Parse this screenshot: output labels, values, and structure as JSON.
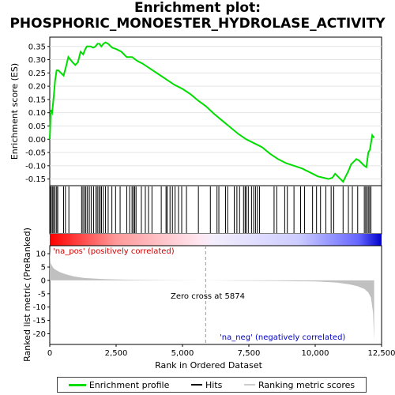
{
  "title_line1": "Enrichment plot:",
  "title_line2": "PHOSPHORIC_MONOESTER_HYDROLASE_ACTIVITY",
  "chart_data": {
    "type": "line",
    "top_panel": {
      "ylabel": "Enrichment score (ES)",
      "yticks": [
        0.35,
        0.3,
        0.25,
        0.2,
        0.15,
        0.1,
        0.05,
        0.0,
        -0.05,
        -0.1,
        -0.15
      ],
      "ytick_labels": [
        "0.35",
        "0.30",
        "0.25",
        "0.20",
        "0.15",
        "0.10",
        "0.05",
        "0.00",
        "-0.05",
        "-0.10",
        "-0.15"
      ],
      "ylim": [
        -0.175,
        0.385
      ],
      "series": {
        "color": "#00dd00",
        "x": [
          0,
          40,
          90,
          150,
          200,
          260,
          320,
          420,
          520,
          600,
          700,
          780,
          860,
          960,
          1060,
          1160,
          1260,
          1340,
          1400,
          1470,
          1540,
          1640,
          1720,
          1800,
          1870,
          1940,
          2020,
          2100,
          2200,
          2350,
          2500,
          2700,
          2900,
          3100,
          3300,
          3500,
          3800,
          4100,
          4400,
          4700,
          5000,
          5300,
          5600,
          5874,
          6200,
          6500,
          6800,
          7100,
          7400,
          7700,
          8000,
          8300,
          8600,
          8900,
          9200,
          9500,
          9800,
          10100,
          10300,
          10500,
          10650,
          10750,
          10850,
          10950,
          11050,
          11150,
          11250,
          11350,
          11450,
          11550,
          11650,
          11750,
          11850,
          11930,
          12000,
          12060,
          12150,
          12220
        ],
        "y": [
          0.0,
          0.11,
          0.1,
          0.16,
          0.22,
          0.26,
          0.26,
          0.25,
          0.24,
          0.27,
          0.31,
          0.3,
          0.29,
          0.28,
          0.29,
          0.33,
          0.32,
          0.34,
          0.35,
          0.35,
          0.35,
          0.345,
          0.35,
          0.36,
          0.36,
          0.35,
          0.36,
          0.365,
          0.36,
          0.345,
          0.34,
          0.33,
          0.31,
          0.31,
          0.295,
          0.285,
          0.265,
          0.245,
          0.225,
          0.205,
          0.19,
          0.17,
          0.145,
          0.125,
          0.095,
          0.07,
          0.045,
          0.02,
          0.0,
          -0.015,
          -0.03,
          -0.055,
          -0.075,
          -0.09,
          -0.1,
          -0.11,
          -0.125,
          -0.14,
          -0.145,
          -0.15,
          -0.145,
          -0.13,
          -0.14,
          -0.15,
          -0.16,
          -0.14,
          -0.12,
          -0.095,
          -0.085,
          -0.075,
          -0.08,
          -0.09,
          -0.1,
          -0.105,
          -0.05,
          -0.04,
          0.015,
          0.005
        ]
      }
    },
    "hits": [
      20,
      60,
      110,
      150,
      200,
      260,
      300,
      520,
      590,
      720,
      1200,
      1250,
      1310,
      1360,
      1420,
      1490,
      1560,
      1650,
      1740,
      1790,
      1850,
      1900,
      1950,
      2020,
      2100,
      2200,
      2340,
      2480,
      2650,
      2900,
      3010,
      3100,
      3150,
      3200,
      3250,
      3450,
      3600,
      3720,
      3850,
      4200,
      4380,
      4420,
      4530,
      4620,
      4720,
      4850,
      4970,
      5150,
      5600,
      6050,
      6300,
      6370,
      6620,
      6700,
      6950,
      7050,
      7150,
      7300,
      7360,
      7400,
      7480,
      7600,
      7680,
      7750,
      7820,
      7900,
      8450,
      8550,
      8850,
      8950,
      9200,
      9450,
      9600,
      9900,
      10050,
      10200,
      10400,
      10600,
      10700,
      11050,
      11250,
      11400,
      11600,
      11850,
      11900,
      11950,
      12000,
      12050,
      12100
    ],
    "bottom_panel": {
      "ylabel": "Ranked list metric (PreRanked)",
      "xlabel": "Rank in Ordered Dataset",
      "yticks": [
        10,
        5,
        0,
        -5,
        -10,
        -15,
        -20
      ],
      "ytick_labels": [
        "10",
        "5",
        "0",
        "-5",
        "-10",
        "-15",
        "-20"
      ],
      "ylim": [
        -24,
        13
      ],
      "metric": {
        "x": [
          0,
          30,
          80,
          150,
          250,
          400,
          600,
          900,
          1300,
          2000,
          3000,
          4500,
          5874,
          7000,
          8500,
          10000,
          10800,
          11300,
          11600,
          11850,
          12000,
          12100,
          12180,
          12220
        ],
        "y": [
          11,
          6.5,
          5.5,
          4.5,
          3.8,
          3.0,
          2.3,
          1.5,
          0.9,
          0.5,
          0.25,
          0.1,
          0.0,
          -0.1,
          -0.2,
          -0.4,
          -0.8,
          -1.5,
          -2.2,
          -3.2,
          -4.5,
          -6.5,
          -12.0,
          -22.5
        ]
      },
      "zero_cross_label": "Zero cross at 5874",
      "zero_cross_value": 5874,
      "pos_label": "'na_pos' (positively correlated)",
      "neg_label": "'na_neg' (negatively correlated)"
    },
    "xticks": [
      0,
      2500,
      5000,
      7500,
      10000,
      12500
    ],
    "xtick_labels": [
      "0",
      "2,500",
      "5,000",
      "7,500",
      "10,000",
      "12,500"
    ],
    "xlim": [
      0,
      12500
    ],
    "dataset_size": 12220,
    "colors": {
      "es_line": "#00dd00",
      "hits": "#000000",
      "metric_fill": "#c0c0c0",
      "pos_label": "#cc0000",
      "neg_label": "#0000cc",
      "bar_pos": "#ff0000",
      "bar_neg": "#0000ff"
    }
  },
  "legend": {
    "items": [
      "Enrichment profile",
      "Hits",
      "Ranking metric scores"
    ]
  }
}
